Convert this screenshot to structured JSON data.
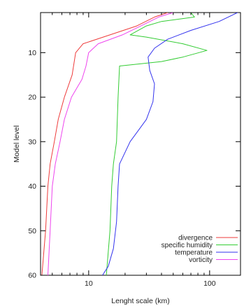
{
  "chart_data": {
    "type": "line",
    "title": "",
    "xlabel": "Lenght scale (km)",
    "ylabel": "Model level",
    "x_scale": "log",
    "xlim": [
      4,
      180
    ],
    "ylim": [
      60,
      1
    ],
    "y_inverted": true,
    "x_ticks": [
      10,
      100
    ],
    "x_tick_labels": [
      "10",
      "100"
    ],
    "y_ticks": [
      10,
      20,
      30,
      40,
      50,
      60
    ],
    "y_tick_labels": [
      "10",
      "20",
      "30",
      "40",
      "50",
      "60"
    ],
    "grid": false,
    "legend_position": "bottom-right",
    "series": [
      {
        "name": "divergence",
        "color": "#ee3b3b",
        "points": [
          [
            45,
            1
          ],
          [
            35,
            2
          ],
          [
            25,
            4
          ],
          [
            15,
            6
          ],
          [
            9,
            8
          ],
          [
            7.8,
            10
          ],
          [
            7.3,
            15
          ],
          [
            6.3,
            20
          ],
          [
            5.6,
            25
          ],
          [
            5.2,
            30
          ],
          [
            4.8,
            35
          ],
          [
            4.6,
            40
          ],
          [
            4.4,
            50
          ],
          [
            4.1,
            60
          ]
        ]
      },
      {
        "name": "specific humidity",
        "color": "#33cc33",
        "points": [
          [
            70,
            1
          ],
          [
            75,
            2
          ],
          [
            40,
            3
          ],
          [
            30,
            4
          ],
          [
            22,
            6
          ],
          [
            30,
            6.5
          ],
          [
            60,
            8
          ],
          [
            95,
            9.5
          ],
          [
            60,
            11
          ],
          [
            40,
            12
          ],
          [
            18,
            13
          ],
          [
            17.5,
            20
          ],
          [
            17,
            30
          ],
          [
            16,
            35
          ],
          [
            15.5,
            40
          ],
          [
            15,
            50
          ],
          [
            14,
            60
          ]
        ]
      },
      {
        "name": "temperature",
        "color": "#3333ee",
        "points": [
          [
            170,
            1
          ],
          [
            120,
            3
          ],
          [
            70,
            5
          ],
          [
            45,
            7
          ],
          [
            35,
            9
          ],
          [
            31,
            11
          ],
          [
            32,
            14
          ],
          [
            35,
            17
          ],
          [
            34,
            21
          ],
          [
            30,
            25
          ],
          [
            22,
            30
          ],
          [
            18,
            35
          ],
          [
            17.5,
            40
          ],
          [
            17,
            48
          ],
          [
            16,
            54
          ],
          [
            14.5,
            58
          ],
          [
            13,
            60
          ]
        ]
      },
      {
        "name": "vorticity",
        "color": "#ee44ee",
        "points": [
          [
            50,
            1
          ],
          [
            38,
            2
          ],
          [
            27,
            4
          ],
          [
            19,
            6
          ],
          [
            12,
            8
          ],
          [
            10,
            10
          ],
          [
            9.5,
            13
          ],
          [
            8.8,
            16
          ],
          [
            7.2,
            20
          ],
          [
            6.3,
            25
          ],
          [
            5.8,
            30
          ],
          [
            5.3,
            35
          ],
          [
            5,
            40
          ],
          [
            4.8,
            50
          ],
          [
            4.6,
            60
          ]
        ]
      }
    ]
  }
}
